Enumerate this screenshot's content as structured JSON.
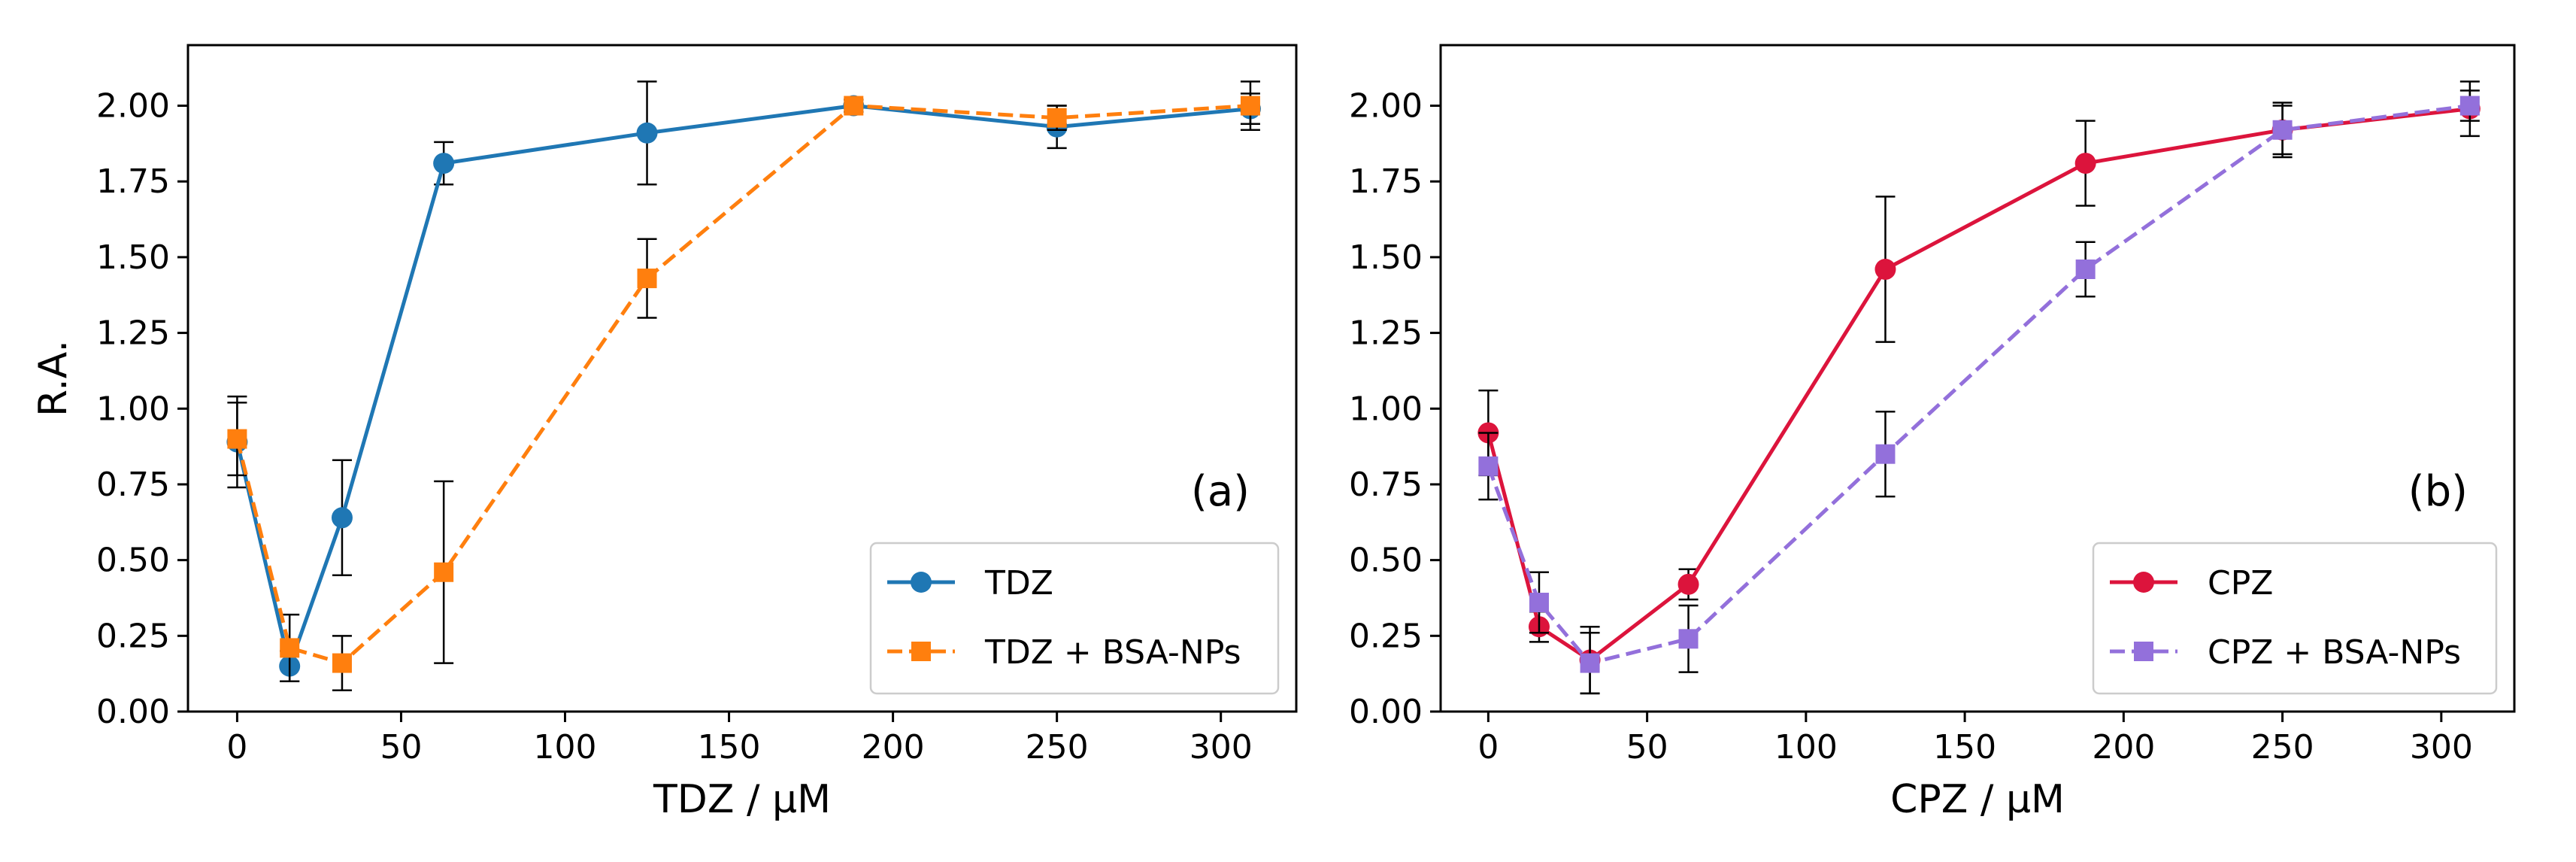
{
  "chart_data": [
    {
      "type": "line",
      "panel_label": "(a)",
      "xlabel": "TDZ / μM",
      "ylabel": "R.A.",
      "xlim": [
        -15,
        323
      ],
      "ylim": [
        0,
        2.2
      ],
      "xticks": [
        0,
        50,
        100,
        150,
        200,
        250,
        300
      ],
      "yticks": [
        0.0,
        0.25,
        0.5,
        0.75,
        1.0,
        1.25,
        1.5,
        1.75,
        2.0
      ],
      "xtick_labels": [
        "0",
        "50",
        "100",
        "150",
        "200",
        "250",
        "300"
      ],
      "ytick_labels": [
        "0.00",
        "0.25",
        "0.50",
        "0.75",
        "1.00",
        "1.25",
        "1.50",
        "1.75",
        "2.00"
      ],
      "grid": false,
      "legend_position": "lower-right",
      "series": [
        {
          "name": "TDZ",
          "color": "#1f77b4",
          "marker": "circle",
          "linestyle": "solid",
          "x": [
            0,
            16,
            32,
            63,
            125,
            188,
            250,
            309
          ],
          "y": [
            0.89,
            0.15,
            0.64,
            1.81,
            1.91,
            2.0,
            1.93,
            1.99
          ],
          "yerr": [
            0.15,
            0.05,
            0.19,
            0.07,
            0.17,
            0.02,
            0.07,
            0.05
          ]
        },
        {
          "name": "TDZ + BSA-NPs",
          "color": "#ff7f0e",
          "marker": "square",
          "linestyle": "dashed",
          "x": [
            0,
            16,
            32,
            63,
            125,
            188,
            250,
            309
          ],
          "y": [
            0.9,
            0.21,
            0.16,
            0.46,
            1.43,
            2.0,
            1.96,
            2.0
          ],
          "yerr": [
            0.12,
            0.11,
            0.09,
            0.3,
            0.13,
            0.02,
            0.04,
            0.08
          ]
        }
      ]
    },
    {
      "type": "line",
      "panel_label": "(b)",
      "xlabel": "CPZ / μM",
      "ylabel": "",
      "xlim": [
        -15,
        323
      ],
      "ylim": [
        0,
        2.2
      ],
      "xticks": [
        0,
        50,
        100,
        150,
        200,
        250,
        300
      ],
      "yticks": [
        0.0,
        0.25,
        0.5,
        0.75,
        1.0,
        1.25,
        1.5,
        1.75,
        2.0
      ],
      "xtick_labels": [
        "0",
        "50",
        "100",
        "150",
        "200",
        "250",
        "300"
      ],
      "ytick_labels": [
        "0.00",
        "0.25",
        "0.50",
        "0.75",
        "1.00",
        "1.25",
        "1.50",
        "1.75",
        "2.00"
      ],
      "grid": false,
      "legend_position": "lower-right",
      "series": [
        {
          "name": "CPZ",
          "color": "#dc143c",
          "marker": "circle",
          "linestyle": "solid",
          "x": [
            0,
            16,
            32,
            63,
            125,
            188,
            250,
            309
          ],
          "y": [
            0.92,
            0.28,
            0.17,
            0.42,
            1.46,
            1.81,
            1.92,
            1.99
          ],
          "yerr": [
            0.14,
            0.05,
            0.11,
            0.05,
            0.24,
            0.14,
            0.09,
            0.09
          ]
        },
        {
          "name": "CPZ + BSA-NPs",
          "color": "#9370db",
          "marker": "square",
          "linestyle": "dashed",
          "x": [
            0,
            16,
            32,
            63,
            125,
            188,
            250,
            309
          ],
          "y": [
            0.81,
            0.36,
            0.16,
            0.24,
            0.85,
            1.46,
            1.92,
            2.0
          ],
          "yerr": [
            0.11,
            0.1,
            0.1,
            0.11,
            0.14,
            0.09,
            0.08,
            0.05
          ]
        }
      ]
    }
  ]
}
